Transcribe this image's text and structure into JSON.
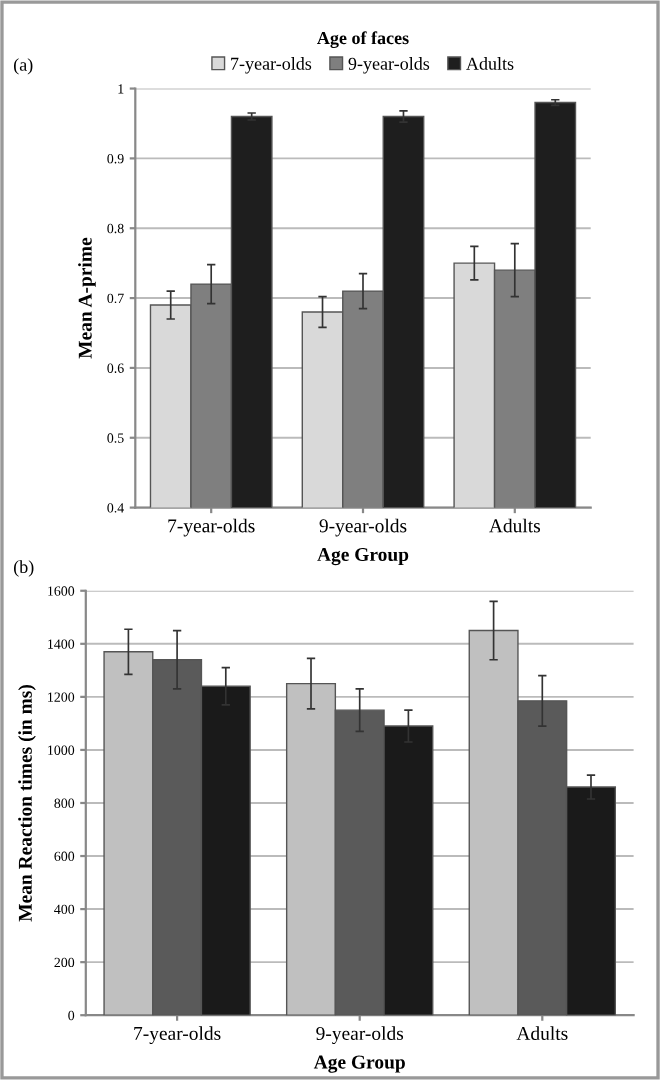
{
  "chart_data": [
    {
      "type": "bar",
      "categories": [
        "7-year-olds",
        "9-year-olds",
        "Adults"
      ],
      "xlabel": "Age Group",
      "ylabel": "Mean A-prime",
      "legend_title": "Age of faces",
      "legend": "top",
      "grid": "y",
      "ylim": [
        0.4,
        1
      ],
      "yticks": [
        0.4,
        0.5,
        0.6,
        0.7,
        0.8,
        0.9,
        1
      ],
      "annotations": [
        "(a)"
      ],
      "series": [
        {
          "name": "7-year-olds",
          "color": "#d9d9d9",
          "values": [
            0.69,
            0.68,
            0.75
          ],
          "errors": [
            0.02,
            0.022,
            0.024
          ]
        },
        {
          "name": "9-year-olds",
          "color": "#7f7f7f",
          "values": [
            0.72,
            0.71,
            0.74
          ],
          "errors": [
            0.028,
            0.025,
            0.038
          ]
        },
        {
          "name": "Adults",
          "color": "#1e1e1e",
          "values": [
            0.96,
            0.96,
            0.98
          ],
          "errors": [
            0.005,
            0.008,
            0.004
          ]
        }
      ]
    },
    {
      "type": "bar",
      "categories": [
        "7-year-olds",
        "9-year-olds",
        "Adults"
      ],
      "xlabel": "Age Group",
      "ylabel": "Mean Reaction times (in ms)",
      "grid": "y",
      "ylim": [
        0,
        1600
      ],
      "yticks": [
        0,
        200,
        400,
        600,
        800,
        1000,
        1200,
        1400,
        1600
      ],
      "annotations": [
        "(b)"
      ],
      "series": [
        {
          "color": "#c0c0c0",
          "values": [
            1370,
            1250,
            1450
          ],
          "errors": [
            85,
            95,
            110
          ]
        },
        {
          "color": "#5a5a5a",
          "values": [
            1340,
            1150,
            1185
          ],
          "errors": [
            110,
            80,
            95
          ]
        },
        {
          "color": "#1a1a1a",
          "values": [
            1240,
            1090,
            860
          ],
          "errors": [
            70,
            60,
            45
          ]
        }
      ]
    }
  ]
}
